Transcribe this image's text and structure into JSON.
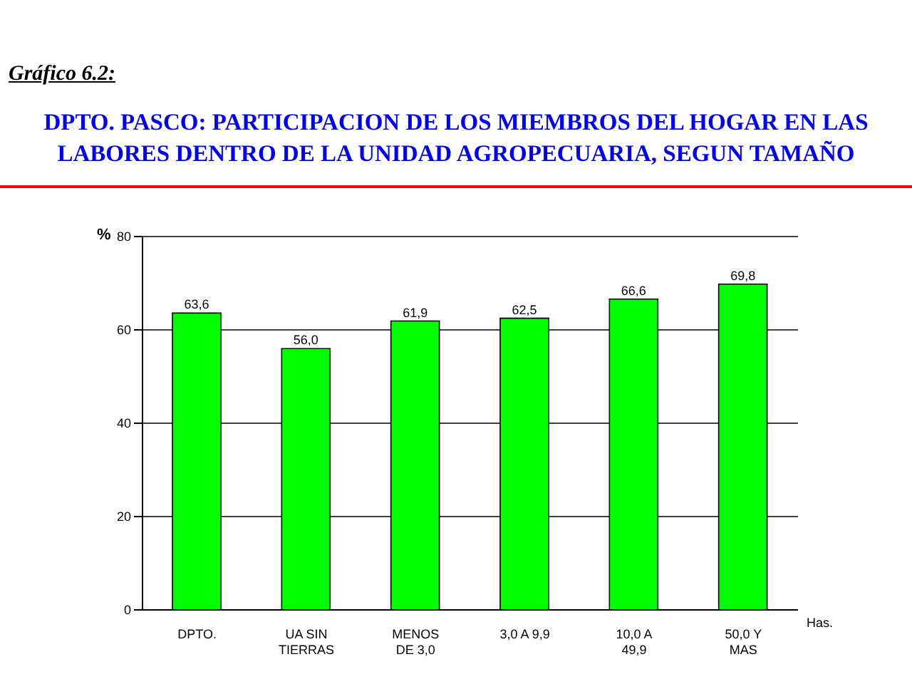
{
  "chart_data": {
    "type": "bar",
    "subtitle": "Gráfico 6.2:",
    "title": "DPTO. PASCO: PARTICIPACION DE LOS MIEMBROS DEL HOGAR EN LAS LABORES DENTRO DE LA UNIDAD AGROPECUARIA, SEGUN TAMAÑO",
    "ylabel": "%",
    "xlabel": "Has.",
    "categories": [
      "DPTO.",
      "UA SIN\nTIERRAS",
      "MENOS\nDE 3,0",
      "3,0 A 9,9",
      "10,0 A\n49,9",
      "50,0 Y\nMAS"
    ],
    "values": [
      63.6,
      56.0,
      61.9,
      62.5,
      66.6,
      69.8
    ],
    "value_labels": [
      "63,6",
      "56,0",
      "61,9",
      "62,5",
      "66,6",
      "69,8"
    ],
    "color": "#00ff00",
    "ylim": [
      0,
      80
    ],
    "yticks": [
      0,
      20,
      40,
      60,
      80
    ],
    "grid": "y"
  }
}
